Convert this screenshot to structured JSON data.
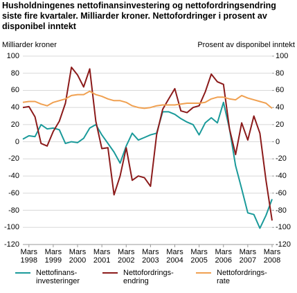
{
  "chart_data": {
    "type": "line",
    "title": "Husholdningenes nettofinansinvestering og nettofordringsendring siste fire kvartaler. Milliarder kroner. Nettofordringer i prosent av disponibel inntekt",
    "y_label": "Milliarder kroner",
    "y2_label": "Prosent av disponibel inntekt",
    "categories": [
      null,
      "Mars\n1998",
      null,
      null,
      null,
      "Mars\n1999",
      null,
      null,
      null,
      "Mars\n2000",
      null,
      null,
      null,
      "Mars\n2001",
      null,
      null,
      null,
      "Mars\n2002",
      null,
      null,
      null,
      "Mars\n2003",
      null,
      null,
      null,
      "Mars\n2004",
      null,
      null,
      null,
      "Mars\n2005",
      null,
      null,
      null,
      "Mars\n2006",
      null,
      null,
      null,
      "Mars\n2007",
      null,
      null,
      null,
      "Mars\n2008"
    ],
    "series": [
      {
        "name": "Nettofinans-\ninvesteringer",
        "color": "#1a9a9a",
        "values": [
          3,
          7,
          6,
          20,
          15,
          16,
          14,
          -2,
          0,
          -1,
          4,
          16,
          20,
          8,
          -2,
          -12,
          -25,
          -5,
          10,
          2,
          5,
          8,
          10,
          35,
          35,
          32,
          27,
          23,
          20,
          8,
          22,
          28,
          22,
          46,
          15,
          -28,
          -55,
          -83,
          -85,
          -101,
          -86,
          -67
        ]
      },
      {
        "name": "Nettofordrings-\nendring",
        "color": "#8b1a1a",
        "values": [
          40,
          41,
          29,
          -2,
          -5,
          12,
          24,
          45,
          87,
          78,
          64,
          85,
          24,
          -8,
          -7,
          -62,
          -40,
          -7,
          -45,
          -40,
          -42,
          -52,
          8,
          38,
          50,
          62,
          36,
          34,
          40,
          42,
          58,
          79,
          70,
          67,
          15,
          -15,
          22,
          2,
          30,
          10,
          -45,
          -92
        ]
      },
      {
        "name": "Nettofordrings-\nrate",
        "color": "#f0a050",
        "axis": "y2",
        "values": [
          46,
          47,
          47,
          44,
          42,
          46,
          48,
          50,
          54,
          55,
          55,
          59,
          55,
          53,
          50,
          48,
          48,
          46,
          42,
          40,
          39,
          40,
          42,
          43,
          43,
          43,
          44,
          45,
          45,
          45,
          46,
          50,
          52,
          52,
          50,
          49,
          54,
          51,
          49,
          47,
          45,
          39
        ]
      }
    ],
    "ylim": [
      -120,
      100
    ],
    "yticks": [
      -120,
      -100,
      -80,
      -60,
      -40,
      -20,
      0,
      20,
      40,
      60,
      80,
      100
    ],
    "y2lim": [
      -120,
      100
    ],
    "y2ticks": [
      -120,
      -100,
      -80,
      -60,
      -40,
      -20,
      0,
      20,
      40,
      60,
      80,
      100
    ],
    "grid": true
  }
}
